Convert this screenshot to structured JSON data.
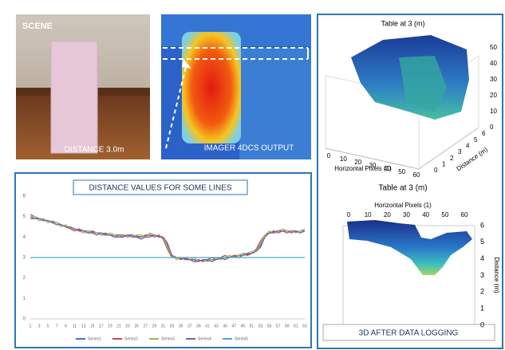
{
  "scene": {
    "title": "SCENE",
    "caption": "DISTANCE 3.0m"
  },
  "imager": {
    "caption": "IMAGER 4DCS OUTPUT"
  },
  "plot3d_top": {
    "title": "Table at 3 (m)",
    "xlabel": "Horizontal Pixels (1)",
    "ylabel": "Distance (m)",
    "xticks": [
      0,
      10,
      20,
      30,
      40,
      50,
      60
    ],
    "yticks": [
      0,
      1,
      2,
      3,
      4,
      5,
      6
    ],
    "zticks": [
      0,
      10,
      20,
      30,
      40,
      50
    ]
  },
  "plot3d_bottom": {
    "title": "Table at 3 (m)",
    "xlabel": "Horizontal Pixels (1)",
    "ylabel": "Distance (m)",
    "xticks": [
      0,
      10,
      20,
      30,
      40,
      50,
      60
    ],
    "yticks": [
      0,
      1,
      2,
      3,
      4,
      5,
      6
    ]
  },
  "caption": "3D AFTER DATA LOGGING",
  "chart_data": {
    "type": "line",
    "title": "DISTANCE VALUES FOR SOME LINES",
    "categories": [
      1,
      null,
      3,
      null,
      5,
      null,
      7,
      null,
      9,
      null,
      11,
      null,
      13,
      null,
      15,
      null,
      17,
      null,
      19,
      null,
      21,
      null,
      23,
      null,
      25,
      null,
      27,
      null,
      29,
      null,
      31,
      null,
      33,
      null,
      35,
      null,
      37,
      null,
      39,
      null,
      41,
      null,
      43,
      null,
      45,
      null,
      47,
      null,
      49,
      null,
      51,
      null,
      53,
      null,
      55,
      null,
      57,
      null,
      59,
      null,
      61,
      null,
      63
    ],
    "ylim": [
      0,
      6
    ],
    "yticks": [
      0,
      1,
      2,
      3,
      4,
      5,
      6
    ],
    "grid": false,
    "legend": "bottom",
    "series": [
      {
        "name": "Series1",
        "color": "#4472c4",
        "values": [
          5.0,
          4.9,
          4.9,
          4.85,
          4.8,
          4.75,
          4.7,
          4.6,
          4.5,
          4.45,
          4.4,
          4.35,
          4.3,
          4.3,
          4.25,
          4.2,
          4.2,
          4.15,
          4.1,
          4.1,
          4.1,
          4.05,
          4.1,
          4.1,
          4.05,
          4.0,
          4.05,
          4.1,
          4.1,
          4.05,
          4.0,
          3.6,
          3.1,
          3.0,
          2.95,
          2.95,
          2.9,
          2.9,
          2.85,
          2.85,
          2.85,
          2.9,
          2.9,
          2.95,
          3.0,
          3.0,
          3.05,
          3.1,
          3.1,
          3.15,
          3.2,
          3.3,
          3.6,
          4.0,
          4.2,
          4.25,
          4.3,
          4.3,
          4.3,
          4.3,
          4.25,
          4.3,
          4.3
        ]
      },
      {
        "name": "Series2",
        "color": "#c0504d",
        "values": [
          5.1,
          5.0,
          4.9,
          4.8,
          4.8,
          4.7,
          4.6,
          4.6,
          4.5,
          4.4,
          4.3,
          4.4,
          4.3,
          4.2,
          4.3,
          4.2,
          4.1,
          4.2,
          4.1,
          4.0,
          4.1,
          4.1,
          4.0,
          4.1,
          4.0,
          4.0,
          4.1,
          4.1,
          4.0,
          4.1,
          3.9,
          3.4,
          3.0,
          3.0,
          2.9,
          3.0,
          2.9,
          2.8,
          2.9,
          2.8,
          2.9,
          3.0,
          2.9,
          3.0,
          3.1,
          3.0,
          3.1,
          3.1,
          3.2,
          3.1,
          3.2,
          3.4,
          3.8,
          4.1,
          4.2,
          4.3,
          4.2,
          4.3,
          4.3,
          4.2,
          4.3,
          4.2,
          4.3
        ]
      },
      {
        "name": "Series3",
        "color": "#9bbb59",
        "values": [
          5.0,
          5.0,
          4.8,
          4.9,
          4.7,
          4.8,
          4.7,
          4.5,
          4.6,
          4.4,
          4.4,
          4.3,
          4.2,
          4.3,
          4.2,
          4.2,
          4.1,
          4.1,
          4.2,
          4.1,
          4.0,
          4.1,
          4.1,
          4.0,
          4.1,
          4.1,
          4.0,
          4.2,
          4.1,
          4.0,
          4.0,
          3.5,
          3.1,
          2.9,
          3.0,
          2.9,
          2.9,
          3.0,
          2.8,
          2.9,
          2.8,
          2.9,
          3.0,
          2.9,
          3.0,
          3.1,
          3.0,
          3.1,
          3.2,
          3.2,
          3.3,
          3.3,
          3.7,
          4.1,
          4.3,
          4.2,
          4.3,
          4.4,
          4.3,
          4.3,
          4.2,
          4.3,
          4.4
        ]
      },
      {
        "name": "Series4",
        "color": "#8064a2",
        "values": [
          4.9,
          4.9,
          4.9,
          4.8,
          4.8,
          4.7,
          4.6,
          4.6,
          4.5,
          4.5,
          4.4,
          4.3,
          4.3,
          4.2,
          4.2,
          4.1,
          4.2,
          4.1,
          4.1,
          4.0,
          4.0,
          4.0,
          4.1,
          4.0,
          4.0,
          3.9,
          4.0,
          4.0,
          4.1,
          4.0,
          4.0,
          3.7,
          3.1,
          3.0,
          3.0,
          2.9,
          2.9,
          2.8,
          2.8,
          2.9,
          2.9,
          2.8,
          2.9,
          3.0,
          2.9,
          3.0,
          3.1,
          3.0,
          3.1,
          3.2,
          3.2,
          3.3,
          3.5,
          4.0,
          4.2,
          4.2,
          4.3,
          4.3,
          4.2,
          4.3,
          4.3,
          4.2,
          4.3
        ]
      },
      {
        "name": "Series5",
        "color": "#4bacc6",
        "values": [
          3,
          3,
          3,
          3,
          3,
          3,
          3,
          3,
          3,
          3,
          3,
          3,
          3,
          3,
          3,
          3,
          3,
          3,
          3,
          3,
          3,
          3,
          3,
          3,
          3,
          3,
          3,
          3,
          3,
          3,
          3,
          3,
          3,
          3,
          3,
          3,
          3,
          3,
          3,
          3,
          3,
          3,
          3,
          3,
          3,
          3,
          3,
          3,
          3,
          3,
          3,
          3,
          3,
          3,
          3,
          3,
          3,
          3,
          3,
          3,
          3,
          3,
          3
        ]
      }
    ]
  }
}
